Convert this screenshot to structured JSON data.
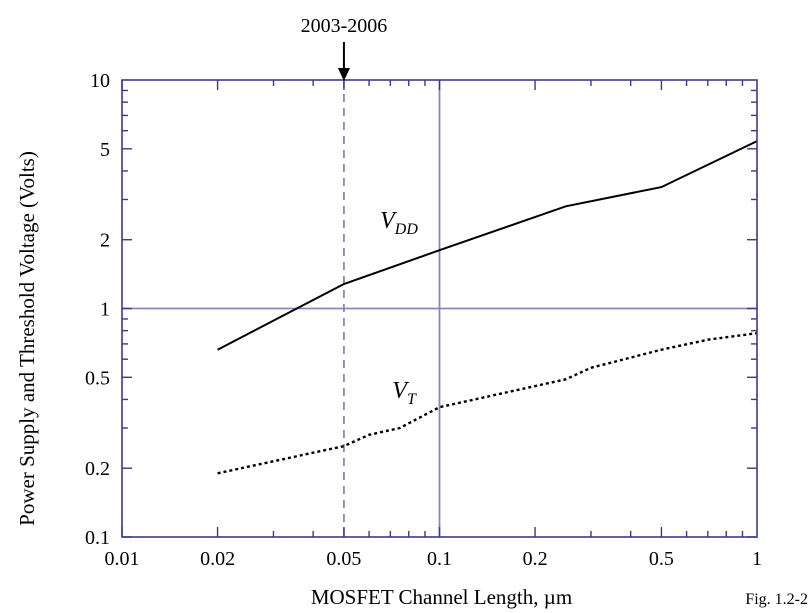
{
  "chart_data": {
    "type": "line",
    "xlabel": "MOSFET Channel Length, µm",
    "ylabel": "Power Supply and Threshold Voltage (Volts)",
    "x_scale": "log",
    "y_scale": "log",
    "xlim": [
      0.01,
      1
    ],
    "ylim": [
      0.1,
      10
    ],
    "x_ticks": [
      0.01,
      0.02,
      0.05,
      0.1,
      0.2,
      0.5,
      1
    ],
    "x_tick_labels": [
      "0.01",
      "0.02",
      "0.05",
      "0.1",
      "0.2",
      "0.5",
      "1"
    ],
    "y_ticks": [
      0.1,
      0.2,
      0.5,
      1,
      2,
      5,
      10
    ],
    "y_tick_labels": [
      "0.1",
      "0.2",
      "0.5",
      "1",
      "2",
      "5",
      "10"
    ],
    "series": [
      {
        "name": "V_DD",
        "label_main": "V",
        "label_sub": "DD",
        "style": "solid",
        "x": [
          0.02,
          0.05,
          0.1,
          0.25,
          0.5,
          1
        ],
        "y": [
          0.66,
          1.28,
          1.8,
          2.8,
          3.4,
          5.4
        ]
      },
      {
        "name": "V_T",
        "label_main": "V",
        "label_sub": "T",
        "style": "dotted",
        "x": [
          0.02,
          0.05,
          0.06,
          0.075,
          0.1,
          0.25,
          0.3,
          0.5,
          0.7,
          1
        ],
        "y": [
          0.19,
          0.25,
          0.28,
          0.3,
          0.37,
          0.49,
          0.55,
          0.66,
          0.73,
          0.78
        ]
      }
    ],
    "reference_lines": [
      {
        "axis": "x",
        "value": 0.05,
        "style": "dashed"
      },
      {
        "axis": "x",
        "value": 0.1,
        "style": "solid"
      },
      {
        "axis": "y",
        "value": 1,
        "style": "solid"
      }
    ],
    "annotations": [
      {
        "text": "2003-2006",
        "points_to_x": 0.05
      }
    ],
    "figure_label": "Fig. 1.2-2",
    "grid": false,
    "colors": {
      "line": "#000000",
      "reference": "#8a86b8",
      "axis": "#3a3a8c"
    }
  }
}
